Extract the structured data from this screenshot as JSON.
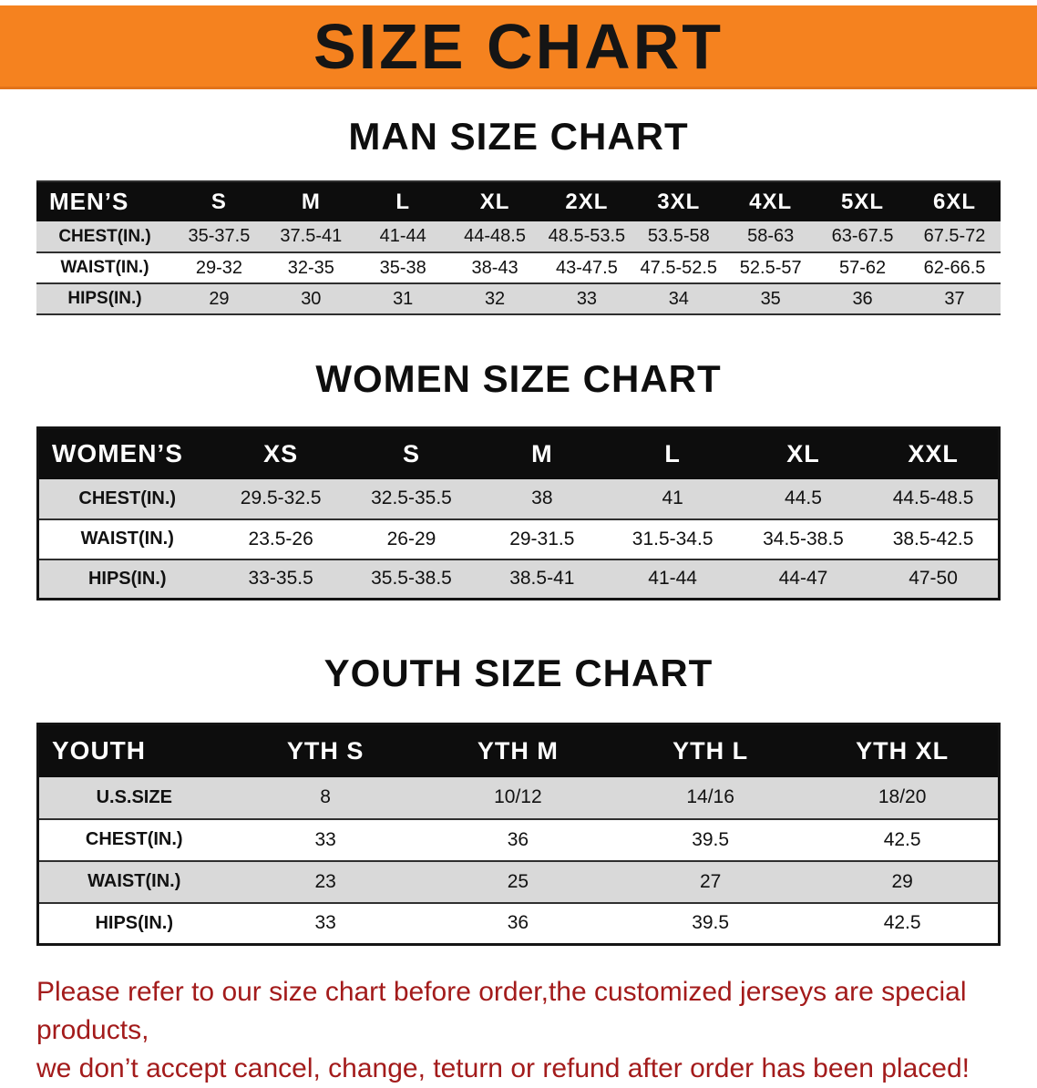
{
  "banner": {
    "title": "SIZE CHART"
  },
  "colors": {
    "banner_bg": "#f5821f",
    "banner_text": "#151515",
    "header_bg": "#0d0d0d",
    "header_text": "#ffffff",
    "row_alt_bg": "#d9d9d9",
    "note_color": "#a31b1b"
  },
  "men": {
    "heading": "MAN SIZE CHART",
    "table": {
      "header": [
        "MEN’S",
        "S",
        "M",
        "L",
        "XL",
        "2XL",
        "3XL",
        "4XL",
        "5XL",
        "6XL"
      ],
      "rows": [
        [
          "CHEST(IN.)",
          "35-37.5",
          "37.5-41",
          "41-44",
          "44-48.5",
          "48.5-53.5",
          "53.5-58",
          "58-63",
          "63-67.5",
          "67.5-72"
        ],
        [
          "WAIST(IN.)",
          "29-32",
          "32-35",
          "35-38",
          "38-43",
          "43-47.5",
          "47.5-52.5",
          "52.5-57",
          "57-62",
          "62-66.5"
        ],
        [
          "HIPS(IN.)",
          "29",
          "30",
          "31",
          "32",
          "33",
          "34",
          "35",
          "36",
          "37"
        ]
      ]
    }
  },
  "women": {
    "heading": "WOMEN SIZE CHART",
    "table": {
      "header": [
        "WOMEN’S",
        "XS",
        "S",
        "M",
        "L",
        "XL",
        "XXL"
      ],
      "rows": [
        [
          "CHEST(IN.)",
          "29.5-32.5",
          "32.5-35.5",
          "38",
          "41",
          "44.5",
          "44.5-48.5"
        ],
        [
          "WAIST(IN.)",
          "23.5-26",
          "26-29",
          "29-31.5",
          "31.5-34.5",
          "34.5-38.5",
          "38.5-42.5"
        ],
        [
          "HIPS(IN.)",
          "33-35.5",
          "35.5-38.5",
          "38.5-41",
          "41-44",
          "44-47",
          "47-50"
        ]
      ]
    }
  },
  "youth": {
    "heading": "YOUTH SIZE CHART",
    "table": {
      "header": [
        "YOUTH",
        "YTH S",
        "YTH M",
        "YTH L",
        "YTH XL"
      ],
      "rows": [
        [
          "U.S.SIZE",
          "8",
          "10/12",
          "14/16",
          "18/20"
        ],
        [
          "CHEST(IN.)",
          "33",
          "36",
          "39.5",
          "42.5"
        ],
        [
          "WAIST(IN.)",
          "23",
          "25",
          "27",
          "29"
        ],
        [
          "HIPS(IN.)",
          "33",
          "36",
          "39.5",
          "42.5"
        ]
      ]
    }
  },
  "note": {
    "line1": "Please refer to our size chart before order,the customized jerseys are special products,",
    "line2": "we don’t accept cancel, change, teturn or refund after order has been placed!"
  }
}
